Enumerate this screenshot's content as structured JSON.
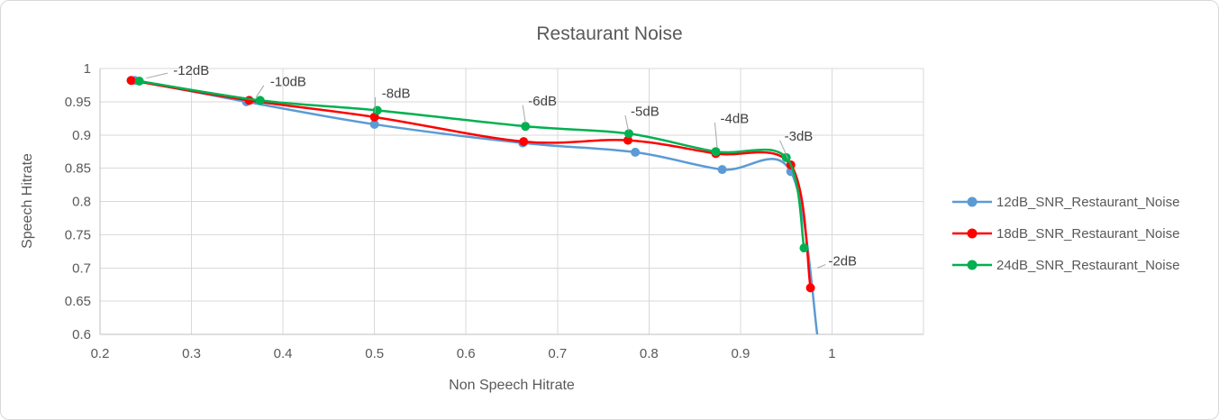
{
  "chart_data": {
    "type": "line",
    "title": "Restaurant Noise",
    "xlabel": "Non Speech Hitrate",
    "ylabel": "Speech Hitrate",
    "xlim": [
      0.2,
      1.1
    ],
    "ylim": [
      0.6,
      1.0
    ],
    "xtick_values": [
      0.2,
      0.3,
      0.4,
      0.5,
      0.6,
      0.7,
      0.8,
      0.9,
      1.0
    ],
    "xtick_labels": [
      "0.2",
      "0.3",
      "0.4",
      "0.5",
      "0.6",
      "0.7",
      "0.8",
      "0.9",
      "1"
    ],
    "xgrid_values": [
      0.2,
      0.3,
      0.4,
      0.5,
      0.6,
      0.7,
      0.8,
      0.9,
      1.0,
      1.1
    ],
    "ytick_values": [
      0.6,
      0.65,
      0.7,
      0.75,
      0.8,
      0.85,
      0.9,
      0.95,
      1.0
    ],
    "ytick_labels": [
      "0.6",
      "0.65",
      "0.7",
      "0.75",
      "0.8",
      "0.85",
      "0.9",
      "0.95",
      "1"
    ],
    "grid": true,
    "legend_position": "right",
    "grid_color": "#d9d9d9",
    "axis_color": "#bfbfbf",
    "leader_color": "#a6a6a6",
    "text_color": "#595959",
    "annotation_color": "#404040",
    "series": [
      {
        "name": "12dB_SNR_Restaurant_Noise",
        "color": "#5B9BD5",
        "points": [
          [
            0.238,
            0.982
          ],
          [
            0.36,
            0.95
          ],
          [
            0.5,
            0.916
          ],
          [
            0.662,
            0.888
          ],
          [
            0.785,
            0.874
          ],
          [
            0.88,
            0.848
          ],
          [
            0.955,
            0.845
          ],
          [
            0.985,
            0.588
          ]
        ]
      },
      {
        "name": "18dB_SNR_Restaurant_Noise",
        "color": "#FF0000",
        "points": [
          [
            0.234,
            0.982
          ],
          [
            0.363,
            0.952
          ],
          [
            0.5,
            0.927
          ],
          [
            0.663,
            0.89
          ],
          [
            0.777,
            0.892
          ],
          [
            0.873,
            0.872
          ],
          [
            0.955,
            0.855
          ],
          [
            0.9765,
            0.67
          ]
        ]
      },
      {
        "name": "24dB_SNR_Restaurant_Noise",
        "color": "#00B050",
        "points": [
          [
            0.243,
            0.981
          ],
          [
            0.375,
            0.952
          ],
          [
            0.503,
            0.937
          ],
          [
            0.665,
            0.913
          ],
          [
            0.778,
            0.902
          ],
          [
            0.873,
            0.875
          ],
          [
            0.95,
            0.866
          ],
          [
            0.9695,
            0.73
          ]
        ]
      }
    ],
    "annotations": [
      {
        "label": "-12dB",
        "tx": 0.28,
        "ty": 0.9975,
        "leader": [
          0.274,
          0.993,
          0.2505,
          0.9855
        ]
      },
      {
        "label": "-10dB",
        "tx": 0.386,
        "ty": 0.9805,
        "leader": [
          0.379,
          0.9745,
          0.3705,
          0.9565
        ]
      },
      {
        "label": "-8dB",
        "tx": 0.508,
        "ty": 0.963,
        "leader": [
          0.501,
          0.957,
          0.5005,
          0.9335
        ]
      },
      {
        "label": "-6dB",
        "tx": 0.668,
        "ty": 0.951,
        "leader": [
          0.662,
          0.945,
          0.665,
          0.918
        ]
      },
      {
        "label": "-5dB",
        "tx": 0.78,
        "ty": 0.9355,
        "leader": [
          0.774,
          0.9295,
          0.7775,
          0.906
        ]
      },
      {
        "label": "-4dB",
        "tx": 0.878,
        "ty": 0.9245,
        "leader": [
          0.872,
          0.9185,
          0.8745,
          0.881
        ]
      },
      {
        "label": "-3dB",
        "tx": 0.948,
        "ty": 0.898,
        "leader": [
          0.943,
          0.892,
          0.952,
          0.864
        ]
      },
      {
        "label": "-2dB",
        "tx": 0.996,
        "ty": 0.7105,
        "leader": [
          0.993,
          0.705,
          0.984,
          0.7
        ]
      }
    ]
  }
}
